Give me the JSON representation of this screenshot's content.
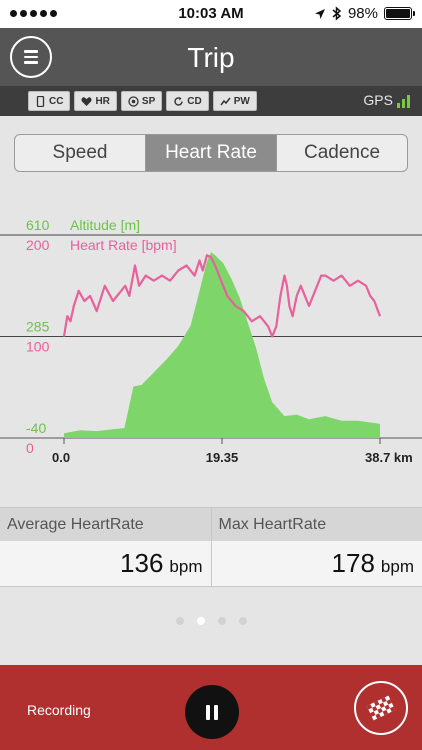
{
  "status_bar": {
    "time": "10:03 AM",
    "battery_text": "98%",
    "battery_level": 0.98
  },
  "nav": {
    "title": "Trip",
    "menu_icon": "hamburger-menu-icon"
  },
  "sensors": [
    {
      "label": "CC",
      "icon": "phone-icon"
    },
    {
      "label": "HR",
      "icon": "heart-icon"
    },
    {
      "label": "SP",
      "icon": "speed-sensor-icon"
    },
    {
      "label": "CD",
      "icon": "cadence-icon"
    },
    {
      "label": "PW",
      "icon": "power-icon"
    }
  ],
  "gps": {
    "label": "GPS",
    "signal_bars": 3
  },
  "tabs": [
    {
      "label": "Speed",
      "active": false
    },
    {
      "label": "Heart Rate",
      "active": true
    },
    {
      "label": "Cadence",
      "active": false
    }
  ],
  "chart_data": {
    "type": "area",
    "x_unit": "km",
    "x_ticks": [
      "0.0",
      "19.35",
      "38.7 km"
    ],
    "x_range": [
      0,
      38.7
    ],
    "series": [
      {
        "name": "Altitude [m]",
        "type": "area",
        "color": "#7ed66a",
        "axis": "left",
        "ylim": [
          -40,
          610
        ],
        "y_ticks": [
          "610",
          "285",
          "-40"
        ],
        "x": [
          0,
          2,
          4,
          6,
          7.4,
          8.5,
          9.5,
          11,
          12.5,
          14,
          15.5,
          16.5,
          17.5,
          18,
          18.5,
          19.5,
          20.5,
          21.5,
          22.5,
          23.5,
          24.5,
          25.5,
          27,
          28.5,
          30,
          32,
          34,
          36,
          38.7
        ],
        "values": [
          -25,
          -15,
          -18,
          -12,
          -8,
          125,
          130,
          170,
          210,
          255,
          320,
          420,
          525,
          555,
          545,
          520,
          470,
          410,
          330,
          250,
          150,
          75,
          30,
          35,
          20,
          30,
          15,
          15,
          5
        ]
      },
      {
        "name": "Heart Rate [bpm]",
        "type": "line",
        "color": "#e8609c",
        "axis": "left",
        "ylim": [
          0,
          200
        ],
        "y_ticks": [
          "200",
          "100",
          "0"
        ],
        "x": [
          0,
          0.4,
          0.8,
          1.2,
          1.8,
          2.5,
          3.2,
          4,
          5,
          6,
          7,
          7.5,
          8,
          8.7,
          9.2,
          10,
          11,
          12,
          13,
          14,
          15,
          16,
          16.6,
          17,
          17.5,
          18,
          18.5,
          19,
          19.5,
          20,
          21,
          22,
          23,
          24,
          25,
          25.5,
          26,
          26.5,
          27,
          27.3,
          27.6,
          28,
          28.5,
          29,
          30,
          31,
          31.5,
          32,
          33,
          34,
          35,
          36,
          37,
          37.5,
          38,
          38.7
        ],
        "values": [
          100,
          120,
          115,
          130,
          145,
          135,
          140,
          125,
          150,
          135,
          145,
          150,
          140,
          170,
          150,
          160,
          155,
          160,
          155,
          165,
          170,
          160,
          175,
          165,
          180,
          178,
          170,
          160,
          150,
          140,
          130,
          125,
          115,
          120,
          110,
          100,
          110,
          140,
          160,
          150,
          130,
          120,
          140,
          150,
          130,
          150,
          160,
          160,
          155,
          160,
          150,
          155,
          150,
          140,
          135,
          120
        ]
      }
    ]
  },
  "stats": [
    {
      "label": "Average HeartRate",
      "value": "136",
      "unit": "bpm"
    },
    {
      "label": "Max HeartRate",
      "value": "178",
      "unit": "bpm"
    }
  ],
  "pager": {
    "count": 4,
    "active_index": 1
  },
  "bottom": {
    "status": "Recording",
    "pause_icon": "pause-icon",
    "finish_icon": "checkered-flag-icon"
  }
}
